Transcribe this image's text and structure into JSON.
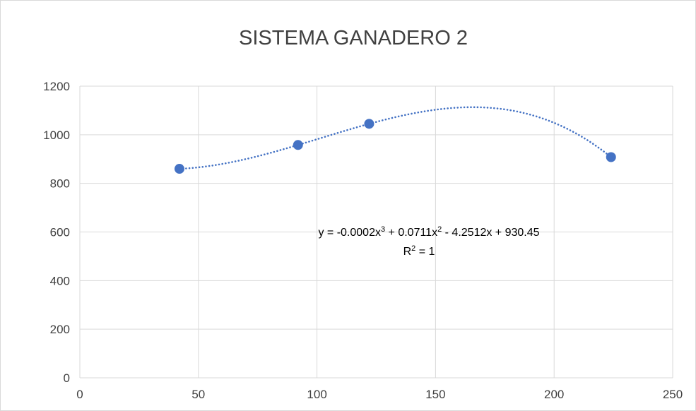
{
  "chart_data": {
    "type": "scatter",
    "title": "SISTEMA GANADERO 2",
    "xlabel": "",
    "ylabel": "",
    "xlim": [
      0,
      250
    ],
    "ylim": [
      0,
      1200
    ],
    "x_ticks": [
      0,
      50,
      100,
      150,
      200,
      250
    ],
    "y_ticks": [
      0,
      200,
      400,
      600,
      800,
      1000,
      1200
    ],
    "grid": true,
    "series": [
      {
        "color": "#4472c4",
        "points": [
          {
            "x": 42,
            "y": 860
          },
          {
            "x": 92,
            "y": 958
          },
          {
            "x": 122,
            "y": 1045
          },
          {
            "x": 224,
            "y": 908
          }
        ]
      }
    ],
    "trendline": {
      "type": "polynomial",
      "order": 3,
      "style": "dotted",
      "color": "#4472c4",
      "coefficients": [
        -0.0002,
        0.0711,
        -4.2512,
        930.45
      ]
    },
    "annotations": {
      "equation_parts": [
        "y = -0.0002x",
        "3",
        " + 0.0711x",
        "2",
        " - 4.2512x + 930.45"
      ],
      "r2_parts": [
        "R",
        "2",
        " = 1"
      ]
    }
  }
}
